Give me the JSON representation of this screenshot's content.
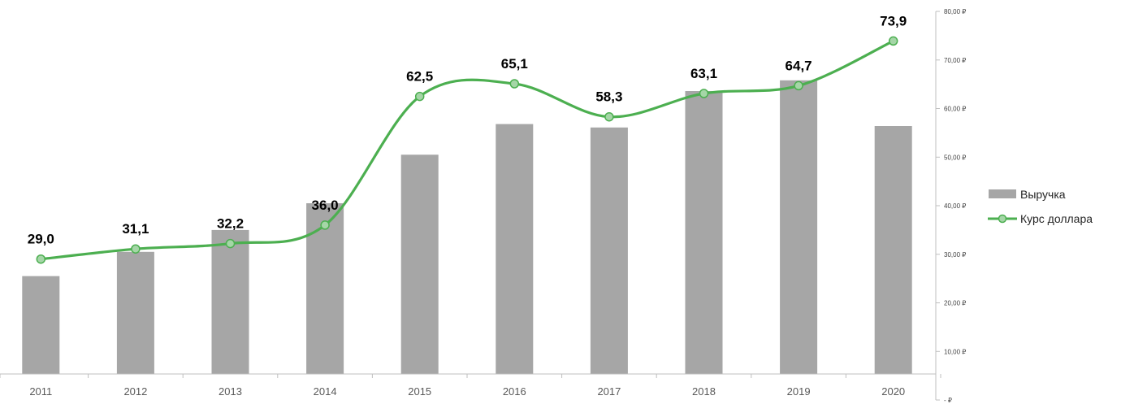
{
  "chart_data": {
    "type": "bar",
    "categories": [
      "2011",
      "2012",
      "2013",
      "2014",
      "2015",
      "2016",
      "2017",
      "2018",
      "2019",
      "2020"
    ],
    "series": [
      {
        "name": "Выручка",
        "type": "bar",
        "color": "#a6a6a6",
        "values": [
          25.5,
          30.5,
          35.0,
          40.5,
          50.5,
          56.8,
          56.1,
          63.6,
          65.8,
          56.4
        ]
      },
      {
        "name": "Курс доллара",
        "type": "line",
        "smooth": true,
        "color": "#4caf50",
        "values": [
          29.0,
          31.1,
          32.2,
          36.0,
          62.5,
          65.1,
          58.3,
          63.1,
          64.7,
          73.9
        ],
        "labels": [
          "29,0",
          "31,1",
          "32,2",
          "36,0",
          "62,5",
          "65,1",
          "58,3",
          "63,1",
          "64,7",
          "73,9"
        ]
      }
    ],
    "y_axis": {
      "position": "right",
      "ylim": [
        0,
        80
      ],
      "ticks": [
        0,
        10,
        20,
        30,
        40,
        50,
        60,
        70,
        80
      ],
      "tick_labels": [
        "-  ₽",
        "10,00 ₽",
        "20,00 ₽",
        "30,00 ₽",
        "40,00 ₽",
        "50,00 ₽",
        "60,00 ₽",
        "70,00 ₽",
        "80,00 ₽"
      ]
    },
    "grid": false,
    "legend": {
      "position": "right",
      "entries": [
        "Выручка",
        "Курс доллара"
      ]
    }
  }
}
